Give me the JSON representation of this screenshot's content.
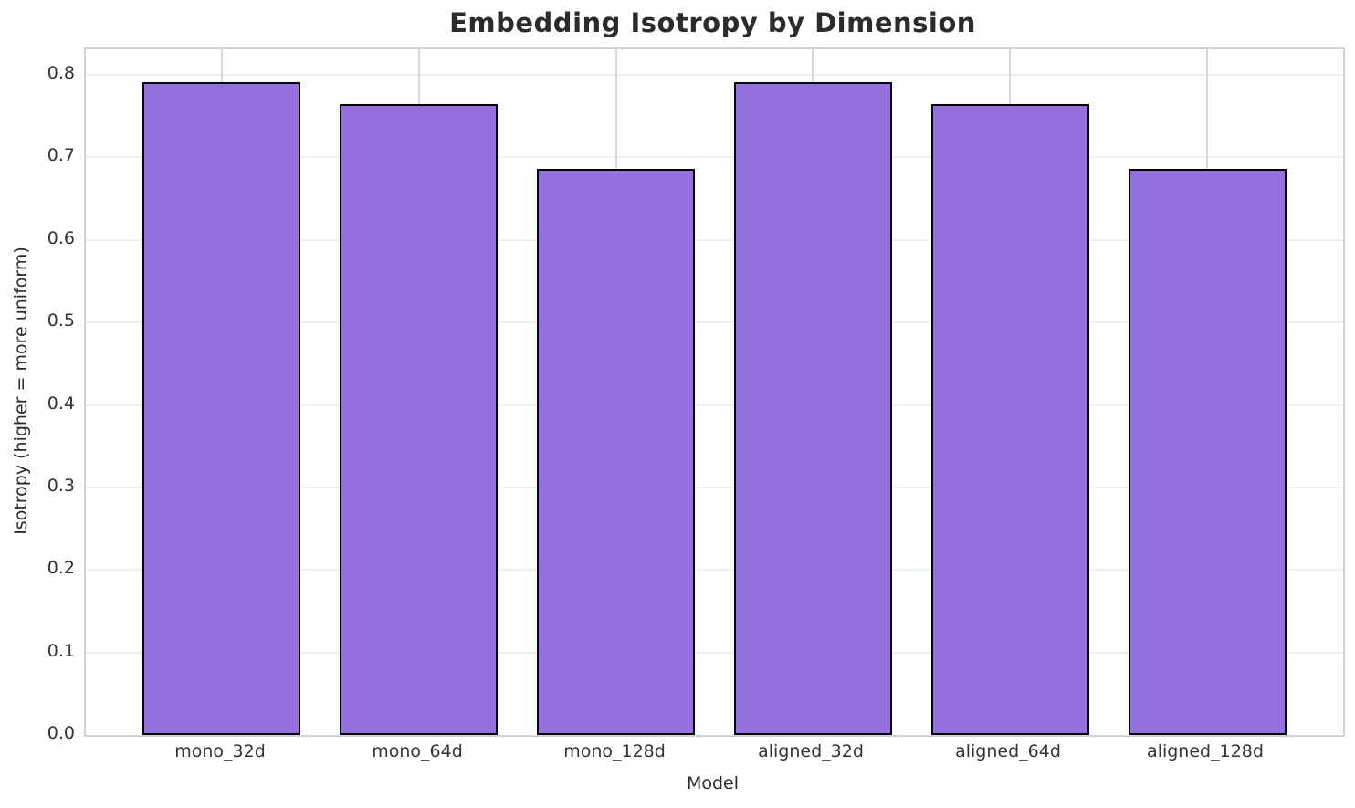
{
  "chart_data": {
    "type": "bar",
    "title": "Embedding Isotropy by Dimension",
    "xlabel": "Model",
    "ylabel": "Isotropy (higher = more uniform)",
    "categories": [
      "mono_32d",
      "mono_64d",
      "mono_128d",
      "aligned_32d",
      "aligned_64d",
      "aligned_128d"
    ],
    "values": [
      0.791,
      0.765,
      0.686,
      0.791,
      0.765,
      0.686
    ],
    "ytick_labels": [
      "0.0",
      "0.1",
      "0.2",
      "0.3",
      "0.4",
      "0.5",
      "0.6",
      "0.7",
      "0.8"
    ],
    "ytick_values": [
      0.0,
      0.1,
      0.2,
      0.3,
      0.4,
      0.5,
      0.6,
      0.7,
      0.8
    ],
    "ylim": [
      0,
      0.831
    ],
    "xlim": [
      -0.69,
      5.69
    ],
    "bar_rel_width": 0.8,
    "grid": "both",
    "legend": "none",
    "colors": {
      "bar_fill": "#9370DB",
      "bar_edge": "#000000",
      "grid_horizontal": "#efefef",
      "grid_vertical": "#d8d8d8",
      "spine": "#d2d2d2",
      "title_text": "#2b2b2b",
      "tick_text": "#333333",
      "background": "#ffffff"
    }
  }
}
